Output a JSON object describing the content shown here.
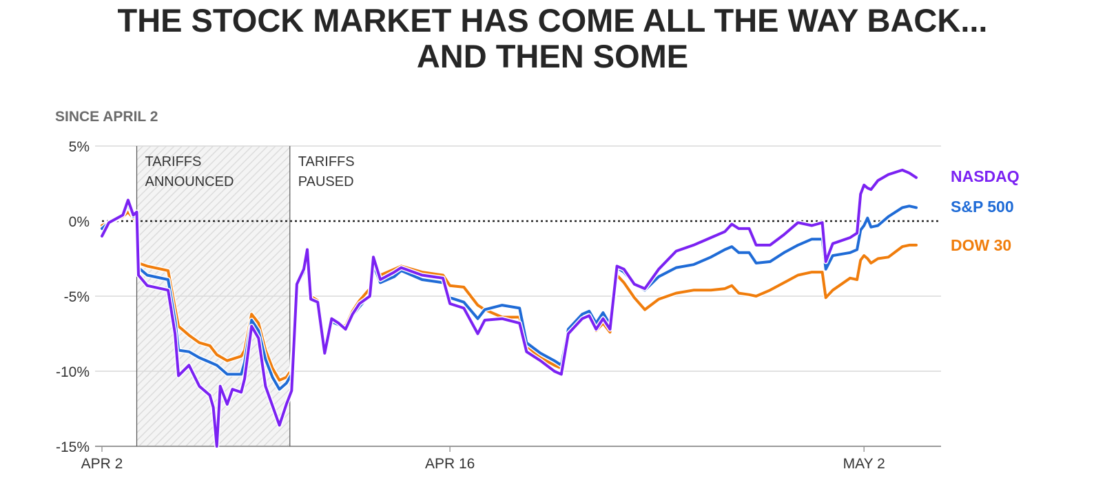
{
  "title_lines": [
    "THE STOCK MARKET HAS COME ALL THE WAY BACK...",
    "AND THEN SOME"
  ],
  "subtitle": "SINCE APRIL 2",
  "chart_data": {
    "type": "line",
    "title": "THE STOCK MARKET HAS COME ALL THE WAY BACK... AND THEN SOME",
    "subtitle": "SINCE APRIL 2",
    "ylabel": "",
    "xlabel": "",
    "ylim": [
      -15,
      5
    ],
    "yticks": [
      5,
      0,
      -5,
      -10,
      -15
    ],
    "ytick_labels": [
      "5%",
      "0%",
      "-5%",
      "-10%",
      "-15%"
    ],
    "xlim": [
      0,
      22.4
    ],
    "xticks": [
      {
        "t": 0,
        "label": "APR 2"
      },
      {
        "t": 10,
        "label": "APR 16"
      },
      {
        "t": 21.9,
        "label": "MAY 2"
      }
    ],
    "grid": true,
    "zero_line": "dotted",
    "annotations": [
      {
        "label": [
          "TARIFFS",
          "ANNOUNCED"
        ],
        "t": 1,
        "shaded_to": 5.4
      },
      {
        "label": [
          "TARIFFS",
          "PAUSED"
        ],
        "t": 5.4
      }
    ],
    "legend": "end-of-line labels",
    "colors": {
      "NASDAQ": "#7b22f2",
      "S&P 500": "#1f6bd6",
      "DOW 30": "#f07d0c",
      "grid": "#d9d9d9",
      "shade": "#e8e8e8"
    },
    "series": [
      {
        "name": "NASDAQ",
        "color": "#7b22f2",
        "points": [
          [
            0,
            -1
          ],
          [
            0.2,
            -0.1
          ],
          [
            0.6,
            0.4
          ],
          [
            0.75,
            1.4
          ],
          [
            0.9,
            0.4
          ],
          [
            1.0,
            0.6
          ],
          [
            1.05,
            -3.6
          ],
          [
            1.3,
            -4.3
          ],
          [
            1.9,
            -4.6
          ],
          [
            2.1,
            -7.5
          ],
          [
            2.2,
            -10.3
          ],
          [
            2.5,
            -9.6
          ],
          [
            2.8,
            -11
          ],
          [
            3.1,
            -11.6
          ],
          [
            3.2,
            -12.4
          ],
          [
            3.3,
            -15
          ],
          [
            3.4,
            -11
          ],
          [
            3.6,
            -12.2
          ],
          [
            3.75,
            -11.2
          ],
          [
            4.0,
            -11.4
          ],
          [
            4.1,
            -10.5
          ],
          [
            4.3,
            -7
          ],
          [
            4.5,
            -7.8
          ],
          [
            4.7,
            -11
          ],
          [
            4.9,
            -12.3
          ],
          [
            5.1,
            -13.6
          ],
          [
            5.3,
            -12.2
          ],
          [
            5.45,
            -11.3
          ],
          [
            5.6,
            -4.2
          ],
          [
            5.8,
            -3.2
          ],
          [
            5.9,
            -1.9
          ],
          [
            6.0,
            -5.2
          ],
          [
            6.2,
            -5.4
          ],
          [
            6.4,
            -8.8
          ],
          [
            6.6,
            -6.5
          ],
          [
            6.8,
            -6.8
          ],
          [
            7.0,
            -7.2
          ],
          [
            7.2,
            -6.2
          ],
          [
            7.4,
            -5.5
          ],
          [
            7.7,
            -5
          ],
          [
            7.8,
            -2.4
          ],
          [
            8.0,
            -3.9
          ],
          [
            8.4,
            -3.4
          ],
          [
            8.6,
            -3.1
          ],
          [
            9.2,
            -3.6
          ],
          [
            9.8,
            -3.8
          ],
          [
            10.0,
            -5.5
          ],
          [
            10.4,
            -5.8
          ],
          [
            10.8,
            -7.5
          ],
          [
            11.0,
            -6.6
          ],
          [
            11.5,
            -6.5
          ],
          [
            12.0,
            -6.8
          ],
          [
            12.2,
            -8.7
          ],
          [
            12.6,
            -9.3
          ],
          [
            13.0,
            -10
          ],
          [
            13.2,
            -10.2
          ],
          [
            13.4,
            -7.5
          ],
          [
            13.8,
            -6.5
          ],
          [
            14.0,
            -6.3
          ],
          [
            14.2,
            -7.2
          ],
          [
            14.4,
            -6.5
          ],
          [
            14.6,
            -7.2
          ],
          [
            14.8,
            -3
          ],
          [
            15.0,
            -3.2
          ],
          [
            15.3,
            -4.2
          ],
          [
            15.6,
            -4.5
          ],
          [
            16.0,
            -3.2
          ],
          [
            16.5,
            -2
          ],
          [
            17.0,
            -1.6
          ],
          [
            17.5,
            -1.1
          ],
          [
            17.9,
            -0.7
          ],
          [
            18.1,
            -0.2
          ],
          [
            18.3,
            -0.5
          ],
          [
            18.6,
            -0.5
          ],
          [
            18.8,
            -1.6
          ],
          [
            19.2,
            -1.6
          ],
          [
            19.6,
            -0.9
          ],
          [
            20.0,
            -0.1
          ],
          [
            20.4,
            -0.3
          ],
          [
            20.7,
            -0.1
          ],
          [
            20.8,
            -2.7
          ],
          [
            21.0,
            -1.5
          ],
          [
            21.5,
            -1.1
          ],
          [
            21.7,
            -0.8
          ],
          [
            21.8,
            1.8
          ],
          [
            21.9,
            2.4
          ],
          [
            22.0,
            2.2
          ],
          [
            22.1,
            2.1
          ],
          [
            22.3,
            2.7
          ],
          [
            22.6,
            3.1
          ],
          [
            23.0,
            3.4
          ],
          [
            23.2,
            3.2
          ],
          [
            23.4,
            2.9
          ]
        ]
      },
      {
        "name": "S&P 500",
        "color": "#1f6bd6",
        "points": [
          [
            0,
            -0.5
          ],
          [
            0.2,
            -0.1
          ],
          [
            0.6,
            0.4
          ],
          [
            0.75,
            1.1
          ],
          [
            0.9,
            0.3
          ],
          [
            1.0,
            0.5
          ],
          [
            1.05,
            -3.1
          ],
          [
            1.3,
            -3.6
          ],
          [
            1.9,
            -3.9
          ],
          [
            2.1,
            -6.6
          ],
          [
            2.2,
            -8.6
          ],
          [
            2.5,
            -8.7
          ],
          [
            2.8,
            -9.1
          ],
          [
            3.1,
            -9.4
          ],
          [
            3.3,
            -9.6
          ],
          [
            3.6,
            -10.2
          ],
          [
            4.0,
            -10.2
          ],
          [
            4.1,
            -9.4
          ],
          [
            4.3,
            -6.6
          ],
          [
            4.5,
            -7.3
          ],
          [
            4.7,
            -9.2
          ],
          [
            4.9,
            -10.4
          ],
          [
            5.1,
            -11.2
          ],
          [
            5.3,
            -10.8
          ],
          [
            5.45,
            -10.2
          ],
          [
            5.6,
            -4.3
          ],
          [
            5.8,
            -3.4
          ],
          [
            5.9,
            -2.2
          ],
          [
            6.0,
            -5.2
          ],
          [
            6.2,
            -5.5
          ],
          [
            6.4,
            -8.4
          ],
          [
            6.6,
            -6.7
          ],
          [
            6.8,
            -6.9
          ],
          [
            7.0,
            -7.2
          ],
          [
            7.2,
            -6.3
          ],
          [
            7.4,
            -5.7
          ],
          [
            7.7,
            -4.9
          ],
          [
            7.8,
            -2.9
          ],
          [
            8.0,
            -4.1
          ],
          [
            8.4,
            -3.7
          ],
          [
            8.6,
            -3.3
          ],
          [
            9.2,
            -3.9
          ],
          [
            9.8,
            -4.1
          ],
          [
            10.0,
            -5.1
          ],
          [
            10.4,
            -5.4
          ],
          [
            10.8,
            -6.5
          ],
          [
            11.0,
            -5.9
          ],
          [
            11.5,
            -5.6
          ],
          [
            12.0,
            -5.8
          ],
          [
            12.2,
            -8.1
          ],
          [
            12.6,
            -8.8
          ],
          [
            13.0,
            -9.3
          ],
          [
            13.2,
            -9.6
          ],
          [
            13.4,
            -7.2
          ],
          [
            13.8,
            -6.2
          ],
          [
            14.0,
            -6.0
          ],
          [
            14.2,
            -6.8
          ],
          [
            14.4,
            -6.1
          ],
          [
            14.6,
            -6.9
          ],
          [
            14.8,
            -3.1
          ],
          [
            15.0,
            -3.4
          ],
          [
            15.3,
            -4.2
          ],
          [
            15.6,
            -4.6
          ],
          [
            16.0,
            -3.7
          ],
          [
            16.5,
            -3.1
          ],
          [
            17.0,
            -2.9
          ],
          [
            17.5,
            -2.4
          ],
          [
            17.9,
            -1.9
          ],
          [
            18.1,
            -1.7
          ],
          [
            18.3,
            -2.1
          ],
          [
            18.6,
            -2.1
          ],
          [
            18.8,
            -2.8
          ],
          [
            19.2,
            -2.7
          ],
          [
            19.6,
            -2.1
          ],
          [
            20.0,
            -1.6
          ],
          [
            20.4,
            -1.2
          ],
          [
            20.7,
            -1.2
          ],
          [
            20.8,
            -3.2
          ],
          [
            21.0,
            -2.3
          ],
          [
            21.5,
            -2.1
          ],
          [
            21.7,
            -1.9
          ],
          [
            21.8,
            -0.6
          ],
          [
            21.9,
            -0.3
          ],
          [
            22.0,
            0.2
          ],
          [
            22.1,
            -0.4
          ],
          [
            22.3,
            -0.3
          ],
          [
            22.6,
            0.3
          ],
          [
            23.0,
            0.9
          ],
          [
            23.2,
            1.0
          ],
          [
            23.4,
            0.9
          ]
        ]
      },
      {
        "name": "DOW 30",
        "color": "#f07d0c",
        "points": [
          [
            0,
            -0.3
          ],
          [
            0.2,
            -0.1
          ],
          [
            0.6,
            0.3
          ],
          [
            0.75,
            0.6
          ],
          [
            0.9,
            0.2
          ],
          [
            1.0,
            0.4
          ],
          [
            1.05,
            -2.8
          ],
          [
            1.3,
            -3.0
          ],
          [
            1.9,
            -3.3
          ],
          [
            2.1,
            -5.8
          ],
          [
            2.2,
            -7.0
          ],
          [
            2.5,
            -7.6
          ],
          [
            2.8,
            -8.1
          ],
          [
            3.1,
            -8.3
          ],
          [
            3.3,
            -8.9
          ],
          [
            3.6,
            -9.3
          ],
          [
            4.0,
            -9.0
          ],
          [
            4.1,
            -8.6
          ],
          [
            4.3,
            -6.2
          ],
          [
            4.5,
            -6.8
          ],
          [
            4.7,
            -8.6
          ],
          [
            4.9,
            -9.8
          ],
          [
            5.1,
            -10.6
          ],
          [
            5.3,
            -10.4
          ],
          [
            5.45,
            -9.9
          ],
          [
            5.6,
            -4.2
          ],
          [
            5.8,
            -3.2
          ],
          [
            5.9,
            -2.2
          ],
          [
            6.0,
            -5.0
          ],
          [
            6.2,
            -5.3
          ],
          [
            6.4,
            -8.3
          ],
          [
            6.6,
            -6.7
          ],
          [
            6.8,
            -6.9
          ],
          [
            7.0,
            -7.0
          ],
          [
            7.2,
            -6.0
          ],
          [
            7.4,
            -5.3
          ],
          [
            7.7,
            -4.5
          ],
          [
            7.8,
            -2.6
          ],
          [
            8.0,
            -3.6
          ],
          [
            8.4,
            -3.2
          ],
          [
            8.6,
            -3.0
          ],
          [
            9.2,
            -3.4
          ],
          [
            9.8,
            -3.6
          ],
          [
            10.0,
            -4.3
          ],
          [
            10.4,
            -4.4
          ],
          [
            10.8,
            -5.6
          ],
          [
            11.0,
            -5.9
          ],
          [
            11.5,
            -6.4
          ],
          [
            12.0,
            -6.4
          ],
          [
            12.2,
            -8.3
          ],
          [
            12.6,
            -9.1
          ],
          [
            13.0,
            -9.6
          ],
          [
            13.2,
            -9.8
          ],
          [
            13.4,
            -7.6
          ],
          [
            13.8,
            -6.5
          ],
          [
            14.0,
            -6.3
          ],
          [
            14.2,
            -7.3
          ],
          [
            14.4,
            -6.8
          ],
          [
            14.6,
            -7.4
          ],
          [
            14.8,
            -3.6
          ],
          [
            15.0,
            -4.1
          ],
          [
            15.3,
            -5.1
          ],
          [
            15.6,
            -5.9
          ],
          [
            16.0,
            -5.2
          ],
          [
            16.5,
            -4.8
          ],
          [
            17.0,
            -4.6
          ],
          [
            17.5,
            -4.6
          ],
          [
            17.9,
            -4.5
          ],
          [
            18.1,
            -4.3
          ],
          [
            18.3,
            -4.8
          ],
          [
            18.6,
            -4.9
          ],
          [
            18.8,
            -5.0
          ],
          [
            19.2,
            -4.6
          ],
          [
            19.6,
            -4.1
          ],
          [
            20.0,
            -3.6
          ],
          [
            20.4,
            -3.4
          ],
          [
            20.7,
            -3.4
          ],
          [
            20.8,
            -5.1
          ],
          [
            21.0,
            -4.6
          ],
          [
            21.5,
            -3.8
          ],
          [
            21.7,
            -3.9
          ],
          [
            21.8,
            -2.6
          ],
          [
            21.9,
            -2.3
          ],
          [
            22.0,
            -2.5
          ],
          [
            22.1,
            -2.8
          ],
          [
            22.3,
            -2.5
          ],
          [
            22.6,
            -2.4
          ],
          [
            23.0,
            -1.7
          ],
          [
            23.2,
            -1.6
          ],
          [
            23.4,
            -1.6
          ]
        ]
      }
    ]
  }
}
